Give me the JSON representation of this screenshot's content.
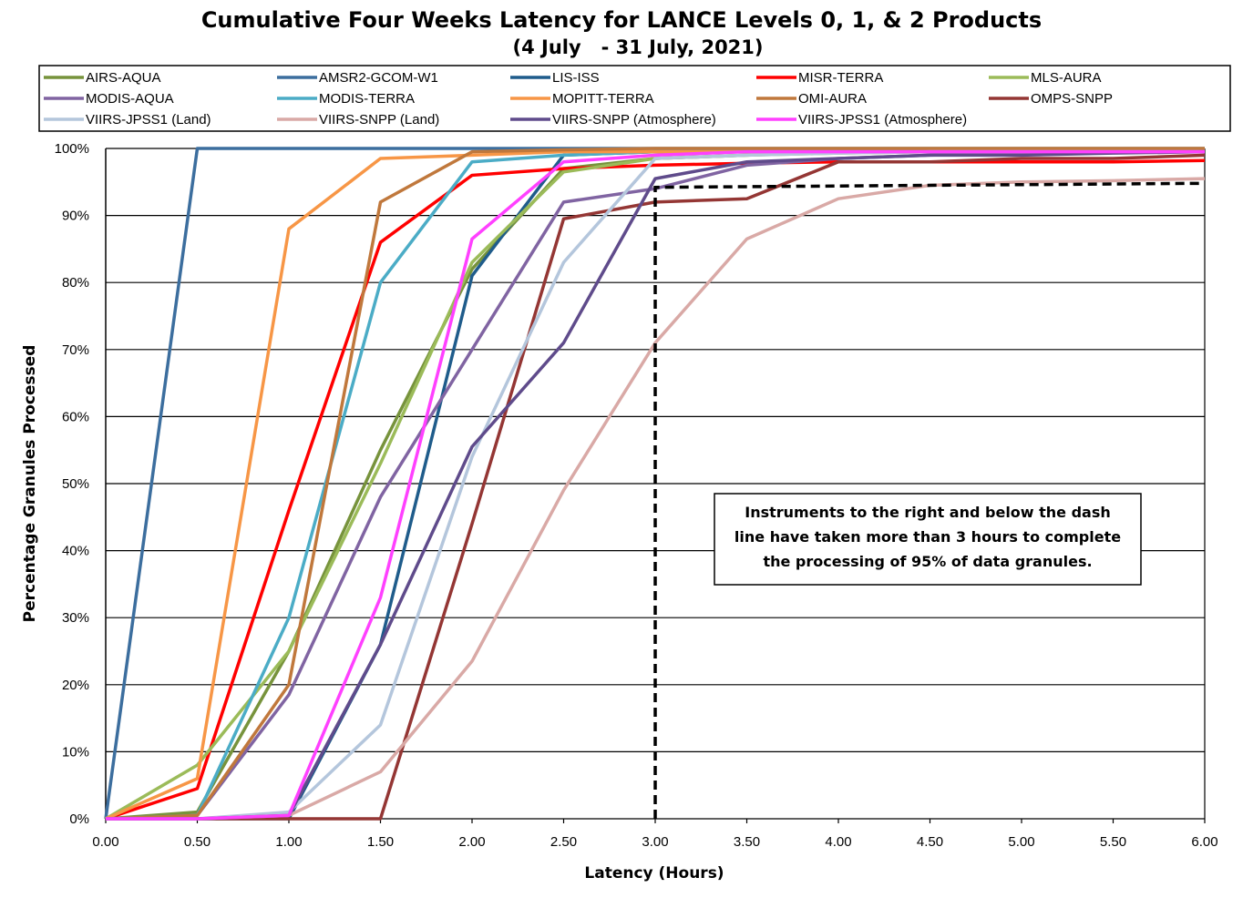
{
  "chart_data": {
    "type": "line",
    "title": "Cumulative Four Weeks Latency  for LANCE Levels 0, 1, & 2 Products",
    "subtitle": "(4 July   - 31 July, 2021)",
    "xlabel": "Latency (Hours)",
    "ylabel": "Percentage Granules Processed",
    "xlim": [
      0,
      6
    ],
    "ylim": [
      0,
      100
    ],
    "x_ticks": [
      "0.00",
      "0.50",
      "1.00",
      "1.50",
      "2.00",
      "2.50",
      "3.00",
      "3.50",
      "4.00",
      "4.50",
      "5.00",
      "5.50",
      "6.00"
    ],
    "y_ticks": [
      "0%",
      "10%",
      "20%",
      "30%",
      "40%",
      "50%",
      "60%",
      "70%",
      "80%",
      "90%",
      "100%"
    ],
    "grid": "horizontal",
    "legend_position": "top",
    "x": [
      0,
      0.5,
      1.0,
      1.5,
      2.0,
      2.5,
      3.0,
      3.5,
      4.0,
      4.5,
      5.0,
      5.5,
      6.0
    ],
    "series": [
      {
        "name": "AIRS-AQUA",
        "color": "#77933C",
        "values": [
          0,
          1,
          25,
          55,
          82,
          97,
          98.5,
          99,
          99.5,
          99.5,
          99.5,
          99.5,
          99.5
        ]
      },
      {
        "name": "AMSR2-GCOM-W1",
        "color": "#3C6E9E",
        "values": [
          0,
          100,
          100,
          100,
          100,
          100,
          100,
          100,
          100,
          100,
          100,
          100,
          100
        ]
      },
      {
        "name": "LIS-ISS",
        "color": "#1F5C8B",
        "values": [
          0,
          0,
          0,
          26,
          81,
          99,
          99.5,
          99.5,
          99.5,
          99.5,
          99.5,
          99.5,
          99.5
        ]
      },
      {
        "name": "MISR-TERRA",
        "color": "#FF0000",
        "values": [
          0,
          4.5,
          46,
          86,
          96,
          97,
          97.5,
          97.8,
          98,
          98,
          98,
          98,
          98.2
        ]
      },
      {
        "name": "MLS-AURA",
        "color": "#9BBB59",
        "values": [
          0,
          8,
          25,
          53,
          83,
          96.5,
          98.5,
          99,
          99.3,
          99.5,
          99.5,
          99.5,
          99.5
        ]
      },
      {
        "name": "MODIS-AQUA",
        "color": "#8064A2",
        "values": [
          0,
          0.5,
          18.5,
          48,
          70,
          92,
          94,
          97.5,
          98.5,
          99,
          99.3,
          99.5,
          99.6
        ]
      },
      {
        "name": "MODIS-TERRA",
        "color": "#4BACC6",
        "values": [
          0,
          0.5,
          30,
          80,
          98,
          99,
          99.5,
          99.5,
          99.5,
          99.5,
          99.5,
          99.5,
          99.5
        ]
      },
      {
        "name": "MOPITT-TERRA",
        "color": "#F79646",
        "values": [
          0,
          6,
          88,
          98.5,
          99,
          99.5,
          99.5,
          99.5,
          99.5,
          99.5,
          99.5,
          99.5,
          99.5
        ]
      },
      {
        "name": "OMI-AURA",
        "color": "#C0783C",
        "values": [
          0,
          0.5,
          20,
          92,
          99.5,
          99.8,
          100,
          100,
          100,
          100,
          100,
          100,
          100
        ]
      },
      {
        "name": "OMPS-SNPP",
        "color": "#943634",
        "values": [
          0,
          0,
          0,
          0,
          44,
          89.5,
          92,
          92.5,
          98,
          98,
          98.5,
          98.5,
          99
        ]
      },
      {
        "name": "VIIRS-JPSS1 (Land)",
        "color": "#B4C6DC",
        "values": [
          0,
          0,
          1,
          14,
          54,
          83,
          98.5,
          99,
          99.3,
          99.5,
          99.5,
          99.5,
          99.5
        ]
      },
      {
        "name": "VIIRS-SNPP (Land)",
        "color": "#D9A9A6",
        "values": [
          0,
          0,
          0.5,
          7,
          23.5,
          49,
          71,
          86.5,
          92.5,
          94.5,
          95,
          95.2,
          95.5
        ]
      },
      {
        "name": "VIIRS-SNPP (Atmosphere)",
        "color": "#5F4B8B",
        "values": [
          0,
          0,
          0.5,
          26,
          55.5,
          71,
          95.5,
          98,
          98.5,
          99,
          99,
          99.3,
          99.5
        ]
      },
      {
        "name": "VIIRS-JPSS1 (Atmosphere)",
        "color": "#FF40FF",
        "values": [
          0,
          0,
          0.5,
          33,
          86.5,
          98,
          99,
          99.5,
          99.5,
          99.5,
          99.5,
          99.5,
          99.5
        ]
      }
    ],
    "reference_line": {
      "style": "dashed",
      "color": "#000000",
      "points": [
        [
          3.0,
          0
        ],
        [
          3.0,
          94.2
        ],
        [
          6.0,
          94.8
        ]
      ]
    },
    "annotation": {
      "lines": [
        "Instruments to the right and below the dash",
        "line have taken more than 3 hours to complete",
        "the processing of 95% of data granules."
      ]
    }
  }
}
